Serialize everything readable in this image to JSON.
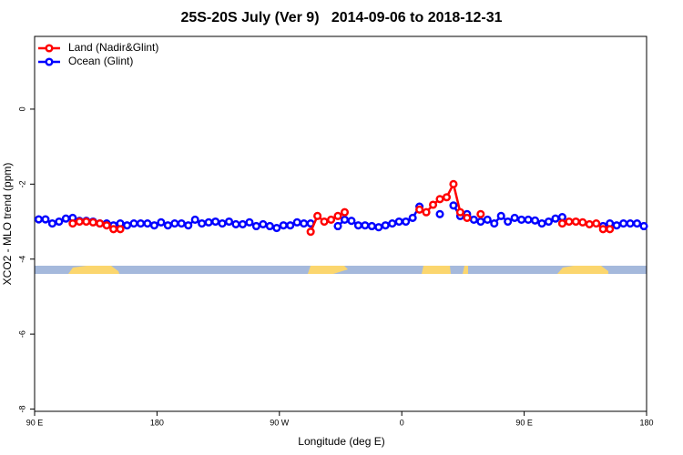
{
  "chart_data": {
    "type": "line",
    "title": "25S-20S July (Ver 9)   2014-09-06 to 2018-12-31",
    "x_label": "Longitude (deg E)",
    "y_label": "XCO2 - MLO trend (ppm)",
    "xlim": [
      90,
      540
    ],
    "xticks": [
      {
        "value": 90,
        "label": "90 E"
      },
      180,
      {
        "value": 270,
        "label": "90 W"
      },
      {
        "value": 360,
        "label": "0"
      },
      {
        "value": 450,
        "label": "90 E"
      },
      {
        "value": 540,
        "label": "180"
      }
    ],
    "ylim": [
      -8.06,
      1.94
    ],
    "yticks": [
      0,
      -2,
      -4,
      -6,
      -8
    ],
    "legend": "top-left",
    "x": [
      93,
      98,
      103,
      108,
      113,
      118,
      123,
      128,
      133,
      138,
      143,
      148,
      153,
      158,
      163,
      168,
      173,
      178,
      183,
      188,
      193,
      198,
      203,
      208,
      213,
      218,
      223,
      228,
      233,
      238,
      243,
      248,
      253,
      258,
      263,
      268,
      273,
      278,
      283,
      288,
      293,
      298,
      303,
      308,
      313,
      318,
      323,
      328,
      333,
      338,
      343,
      348,
      353,
      358,
      363,
      368,
      373,
      378,
      383,
      388,
      393,
      398,
      403,
      408,
      413,
      418,
      423,
      428,
      433,
      438,
      443,
      448,
      453,
      458,
      463,
      468,
      473,
      478,
      483,
      488,
      493,
      498,
      503,
      508,
      513,
      518,
      523,
      528,
      533,
      538
    ],
    "series": [
      {
        "name": "Land (Nadir&Glint)",
        "color": "#ff0000",
        "values": [
          null,
          null,
          null,
          null,
          null,
          -3.05,
          -3.0,
          -3.0,
          -3.02,
          -3.05,
          -3.1,
          -3.2,
          -3.2,
          null,
          null,
          null,
          null,
          null,
          null,
          null,
          null,
          null,
          null,
          null,
          null,
          null,
          null,
          null,
          null,
          null,
          null,
          null,
          null,
          null,
          null,
          null,
          null,
          null,
          null,
          null,
          -3.27,
          -2.85,
          -3.0,
          -2.95,
          -2.85,
          -2.75,
          null,
          null,
          null,
          null,
          null,
          null,
          null,
          null,
          null,
          null,
          -2.68,
          -2.75,
          -2.55,
          -2.4,
          -2.35,
          -2.0,
          -2.75,
          -2.9,
          null,
          -2.8,
          null,
          null,
          null,
          null,
          null,
          null,
          null,
          null,
          null,
          null,
          null,
          -3.05,
          -3.0,
          -3.0,
          -3.02,
          -3.07,
          -3.05,
          -3.2,
          -3.2,
          null,
          null,
          null,
          null,
          null
        ]
      },
      {
        "name": "Ocean (Glint)",
        "color": "#0000ff",
        "values": [
          -2.94,
          -2.94,
          -3.05,
          -3.0,
          -2.92,
          -2.9,
          -2.98,
          -2.98,
          -3.0,
          -3.05,
          -3.05,
          -3.1,
          -3.05,
          -3.1,
          -3.05,
          -3.05,
          -3.05,
          -3.1,
          -3.02,
          -3.1,
          -3.05,
          -3.05,
          -3.1,
          -2.95,
          -3.05,
          -3.02,
          -3.0,
          -3.05,
          -3.0,
          -3.07,
          -3.07,
          -3.02,
          -3.12,
          -3.07,
          -3.12,
          -3.17,
          -3.1,
          -3.1,
          -3.02,
          -3.05,
          -3.05,
          null,
          null,
          null,
          -3.12,
          -2.95,
          -2.98,
          -3.1,
          -3.1,
          -3.12,
          -3.15,
          -3.1,
          -3.05,
          -3.0,
          -3.0,
          -2.9,
          -2.6,
          null,
          null,
          -2.8,
          null,
          -2.57,
          -2.85,
          -2.8,
          -2.95,
          -3.0,
          -2.95,
          -3.05,
          -2.85,
          -3.0,
          -2.9,
          -2.95,
          -2.95,
          -2.97,
          -3.05,
          -3.0,
          -2.92,
          -2.88,
          null,
          null,
          null,
          null,
          null,
          -3.12,
          -3.05,
          -3.1,
          -3.05,
          -3.05,
          -3.05,
          -3.12
        ]
      }
    ]
  }
}
